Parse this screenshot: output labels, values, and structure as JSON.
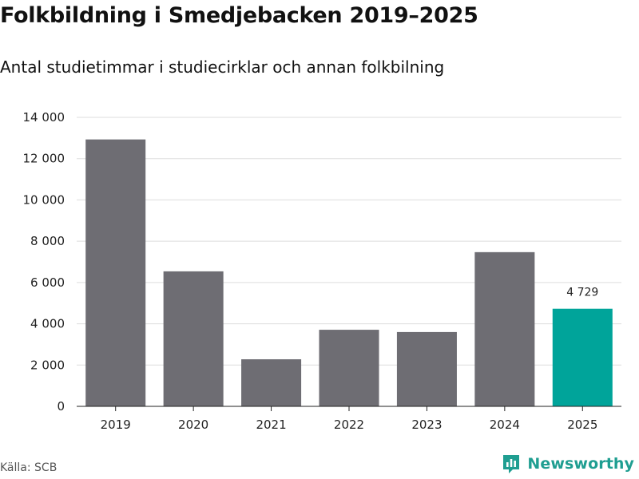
{
  "title": "Folkbildning i Smedjebacken 2019–2025",
  "subtitle": "Antal studietimmar i studiecirklar och annan folkbilning",
  "source": "Källa: SCB",
  "brand": "Newsworthy",
  "colors": {
    "bar": "#6e6d73",
    "highlight": "#00a49a",
    "grid": "#dddddd",
    "axis": "#222222",
    "brand": "#1f9e91"
  },
  "chart_data": {
    "type": "bar",
    "title": "Folkbildning i Smedjebacken 2019–2025",
    "subtitle": "Antal studietimmar i studiecirklar och annan folkbilning",
    "xlabel": "",
    "ylabel": "",
    "categories": [
      "2019",
      "2020",
      "2021",
      "2022",
      "2023",
      "2024",
      "2025"
    ],
    "values": [
      12930,
      6540,
      2280,
      3710,
      3600,
      7470,
      4729
    ],
    "highlight_index": 6,
    "ylim": [
      0,
      14000
    ],
    "yticks": [
      0,
      2000,
      4000,
      6000,
      8000,
      10000,
      12000,
      14000
    ],
    "ytick_labels": [
      "0",
      "2 000",
      "4 000",
      "6 000",
      "8 000",
      "10 000",
      "12 000",
      "14 000"
    ],
    "data_labels": [
      {
        "index": 6,
        "text": "4 729"
      }
    ],
    "grid": true
  }
}
